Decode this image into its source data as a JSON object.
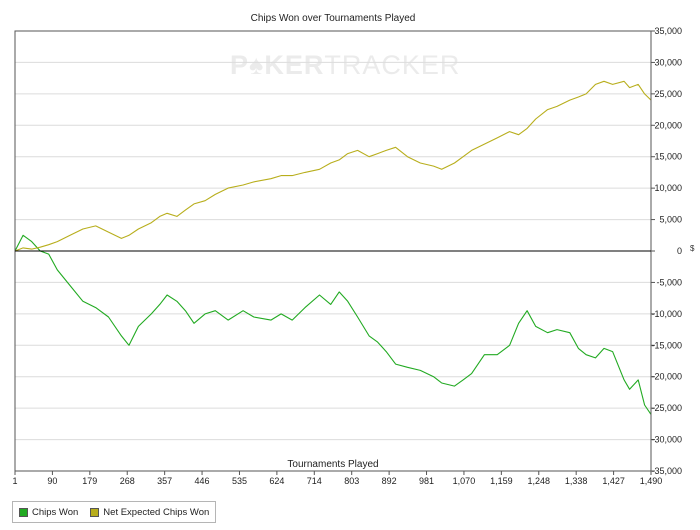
{
  "chart_data": {
    "type": "line",
    "title": "Chips Won over Tournaments Played",
    "xlabel": "Tournaments Played",
    "ylabel": "",
    "x_ticks": [
      "1",
      "90",
      "179",
      "268",
      "357",
      "446",
      "535",
      "624",
      "714",
      "803",
      "892",
      "981",
      "1,070",
      "1,159",
      "1,248",
      "1,338",
      "1,427",
      "1,490"
    ],
    "xlim": [
      1,
      1490
    ],
    "ylim": [
      -35000,
      35000
    ],
    "y_ticks": [
      "35,000",
      "30,000",
      "25,000",
      "20,000",
      "15,000",
      "10,000",
      "5,000",
      "0",
      "-5,000",
      "-10,000",
      "-15,000",
      "-20,000",
      "-25,000",
      "-30,000",
      "-35,000"
    ],
    "y_unit_label": "$",
    "grid": "horizontal",
    "legend_position": "bottom-left",
    "watermark": "POKERTRACKER",
    "series": [
      {
        "name": "Chips Won",
        "color": "#22aa22",
        "x": [
          1,
          20,
          40,
          60,
          80,
          100,
          130,
          160,
          190,
          220,
          250,
          268,
          290,
          320,
          340,
          357,
          380,
          400,
          420,
          446,
          470,
          500,
          535,
          560,
          600,
          624,
          650,
          680,
          714,
          740,
          760,
          780,
          803,
          830,
          850,
          870,
          892,
          920,
          950,
          981,
          1000,
          1030,
          1050,
          1070,
          1100,
          1130,
          1159,
          1180,
          1200,
          1220,
          1248,
          1270,
          1300,
          1320,
          1338,
          1360,
          1380,
          1400,
          1427,
          1440,
          1460,
          1475,
          1490
        ],
        "y": [
          0,
          2500,
          1500,
          0,
          -500,
          -3000,
          -5500,
          -8000,
          -9000,
          -10500,
          -13500,
          -15000,
          -12000,
          -10000,
          -8500,
          -7000,
          -8000,
          -9500,
          -11500,
          -10000,
          -9500,
          -11000,
          -9500,
          -10500,
          -11000,
          -10000,
          -11000,
          -9000,
          -7000,
          -8500,
          -6500,
          -8000,
          -10500,
          -13500,
          -14500,
          -16000,
          -18000,
          -18500,
          -19000,
          -20000,
          -21000,
          -21500,
          -20500,
          -19500,
          -16500,
          -16500,
          -15000,
          -11500,
          -9500,
          -12000,
          -13000,
          -12500,
          -13000,
          -15500,
          -16500,
          -17000,
          -15500,
          -16000,
          -20500,
          -22000,
          -20500,
          -24500,
          -26000
        ]
      },
      {
        "name": "Net Expected Chips Won",
        "color": "#b8ae1c",
        "x": [
          1,
          20,
          40,
          60,
          80,
          100,
          130,
          160,
          190,
          220,
          250,
          268,
          290,
          320,
          340,
          357,
          380,
          400,
          420,
          446,
          470,
          500,
          535,
          560,
          600,
          624,
          650,
          680,
          714,
          740,
          760,
          780,
          803,
          830,
          850,
          870,
          892,
          920,
          950,
          981,
          1000,
          1030,
          1050,
          1070,
          1100,
          1130,
          1159,
          1180,
          1200,
          1220,
          1248,
          1270,
          1300,
          1320,
          1338,
          1360,
          1380,
          1400,
          1427,
          1440,
          1460,
          1475,
          1490
        ],
        "y": [
          0,
          500,
          300,
          600,
          1000,
          1500,
          2500,
          3500,
          4000,
          3000,
          2000,
          2500,
          3500,
          4500,
          5500,
          6000,
          5500,
          6500,
          7500,
          8000,
          9000,
          10000,
          10500,
          11000,
          11500,
          12000,
          12000,
          12500,
          13000,
          14000,
          14500,
          15500,
          16000,
          15000,
          15500,
          16000,
          16500,
          15000,
          14000,
          13500,
          13000,
          14000,
          15000,
          16000,
          17000,
          18000,
          19000,
          18500,
          19500,
          21000,
          22500,
          23000,
          24000,
          24500,
          25000,
          26500,
          27000,
          26500,
          27000,
          26000,
          26500,
          25000,
          24000
        ]
      }
    ]
  }
}
